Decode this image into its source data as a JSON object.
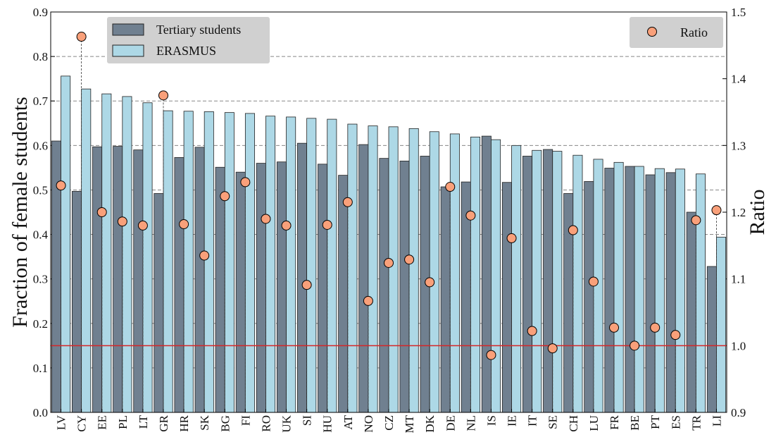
{
  "chart_data": {
    "type": "bar",
    "y_label": "Fraction of female students",
    "y2_label": "Ratio",
    "categories": [
      "LV",
      "CY",
      "EE",
      "PL",
      "LT",
      "GR",
      "HR",
      "SK",
      "BG",
      "FI",
      "RO",
      "UK",
      "SI",
      "HU",
      "AT",
      "NO",
      "CZ",
      "MT",
      "DK",
      "DE",
      "NL",
      "IS",
      "IE",
      "IT",
      "SE",
      "CH",
      "LU",
      "FR",
      "BE",
      "PT",
      "ES",
      "TR",
      "LI"
    ],
    "series": [
      {
        "name": "Tertiary students",
        "type": "bar",
        "color": "#708090",
        "values": [
          0.61,
          0.497,
          0.597,
          0.598,
          0.59,
          0.492,
          0.573,
          0.596,
          0.551,
          0.54,
          0.56,
          0.563,
          0.605,
          0.558,
          0.533,
          0.602,
          0.571,
          0.565,
          0.576,
          0.507,
          0.518,
          0.621,
          0.517,
          0.576,
          0.591,
          0.492,
          0.519,
          0.549,
          0.553,
          0.534,
          0.539,
          0.45,
          0.328
        ]
      },
      {
        "name": "ERASMUS",
        "type": "bar",
        "color": "#add8e6",
        "values": [
          0.756,
          0.727,
          0.716,
          0.71,
          0.696,
          0.678,
          0.677,
          0.676,
          0.674,
          0.672,
          0.666,
          0.664,
          0.661,
          0.659,
          0.648,
          0.644,
          0.642,
          0.638,
          0.631,
          0.626,
          0.619,
          0.613,
          0.6,
          0.589,
          0.587,
          0.578,
          0.569,
          0.562,
          0.553,
          0.548,
          0.547,
          0.536,
          0.394
        ]
      },
      {
        "name": "Ratio",
        "type": "scatter",
        "axis": "y2",
        "color": "#f9a07a",
        "values": [
          1.24,
          1.463,
          1.2,
          1.186,
          1.18,
          1.375,
          1.182,
          1.135,
          1.224,
          1.245,
          1.19,
          1.18,
          1.091,
          1.181,
          1.215,
          1.067,
          1.124,
          1.129,
          1.095,
          1.238,
          1.195,
          0.986,
          1.161,
          1.022,
          0.996,
          1.173,
          1.096,
          1.027,
          1.0,
          1.027,
          1.016,
          1.188,
          1.203
        ]
      }
    ],
    "ylim": [
      0,
      0.9
    ],
    "yticks": [
      {
        "value": 0,
        "label": "0.0"
      },
      0.1,
      0.2,
      0.3,
      0.4,
      0.5,
      0.6,
      0.7,
      0.8,
      0.9
    ],
    "y2lim": [
      0.9,
      1.5
    ],
    "y2ticks": [
      0.9,
      {
        "value": 1.0,
        "label": "1.0"
      },
      1.1,
      1.2,
      1.3,
      1.4,
      1.5
    ],
    "grid": true,
    "reference_line": {
      "value": 1.0,
      "axis": "y2",
      "color": "#d62728"
    },
    "legend": "upper left",
    "legend2": "upper right"
  }
}
